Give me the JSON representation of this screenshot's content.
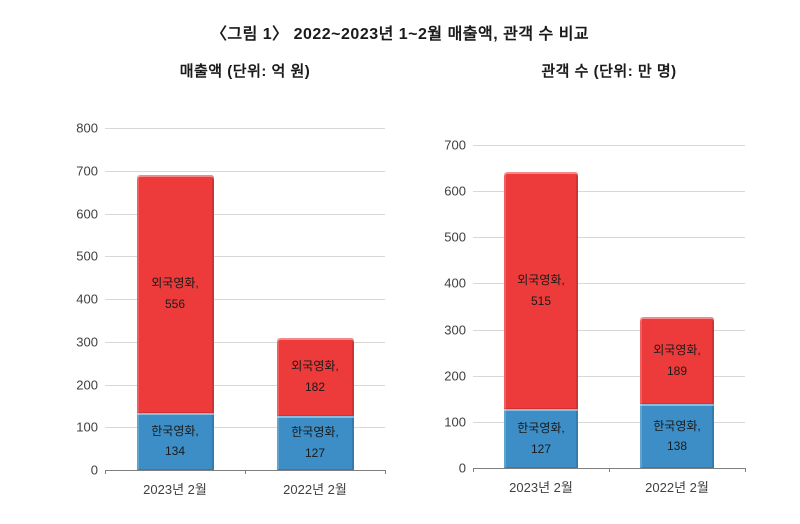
{
  "title": "〈그림 1〉 2022~2023년 1~2월 매출액, 관객 수 비교",
  "colors": {
    "korean_film": "#3D8EC6",
    "foreign_film": "#ED3B3B",
    "gridline": "#D8D8D8",
    "axis": "#7F7F7F",
    "tick_label": "#404040",
    "title_text": "#1A1A1A",
    "background": "#FFFFFF"
  },
  "chart_data": [
    {
      "type": "bar",
      "subtype": "stacked",
      "title": "매출액 (단위: 억 원)",
      "unit": "억 원",
      "categories": [
        "2023년 2월",
        "2022년 2월"
      ],
      "series": [
        {
          "name": "한국영화",
          "color": "#3D8EC6",
          "values": [
            134,
            127
          ]
        },
        {
          "name": "외국영화",
          "color": "#ED3B3B",
          "values": [
            556,
            182
          ]
        }
      ],
      "totals": [
        690,
        309
      ],
      "ylim": [
        0,
        800
      ],
      "ytick_step": 100,
      "grid": true,
      "legend_position": "none",
      "label_format": "name, value inside each segment"
    },
    {
      "type": "bar",
      "subtype": "stacked",
      "title": "관객 수 (단위: 만 명)",
      "unit": "만 명",
      "categories": [
        "2023년 2월",
        "2022년 2월"
      ],
      "series": [
        {
          "name": "한국영화",
          "color": "#3D8EC6",
          "values": [
            127,
            138
          ]
        },
        {
          "name": "외국영화",
          "color": "#ED3B3B",
          "values": [
            515,
            189
          ]
        }
      ],
      "totals": [
        642,
        327
      ],
      "ylim": [
        0,
        700
      ],
      "ytick_step": 100,
      "grid": true,
      "legend_position": "none",
      "label_format": "name, value inside each segment"
    }
  ]
}
